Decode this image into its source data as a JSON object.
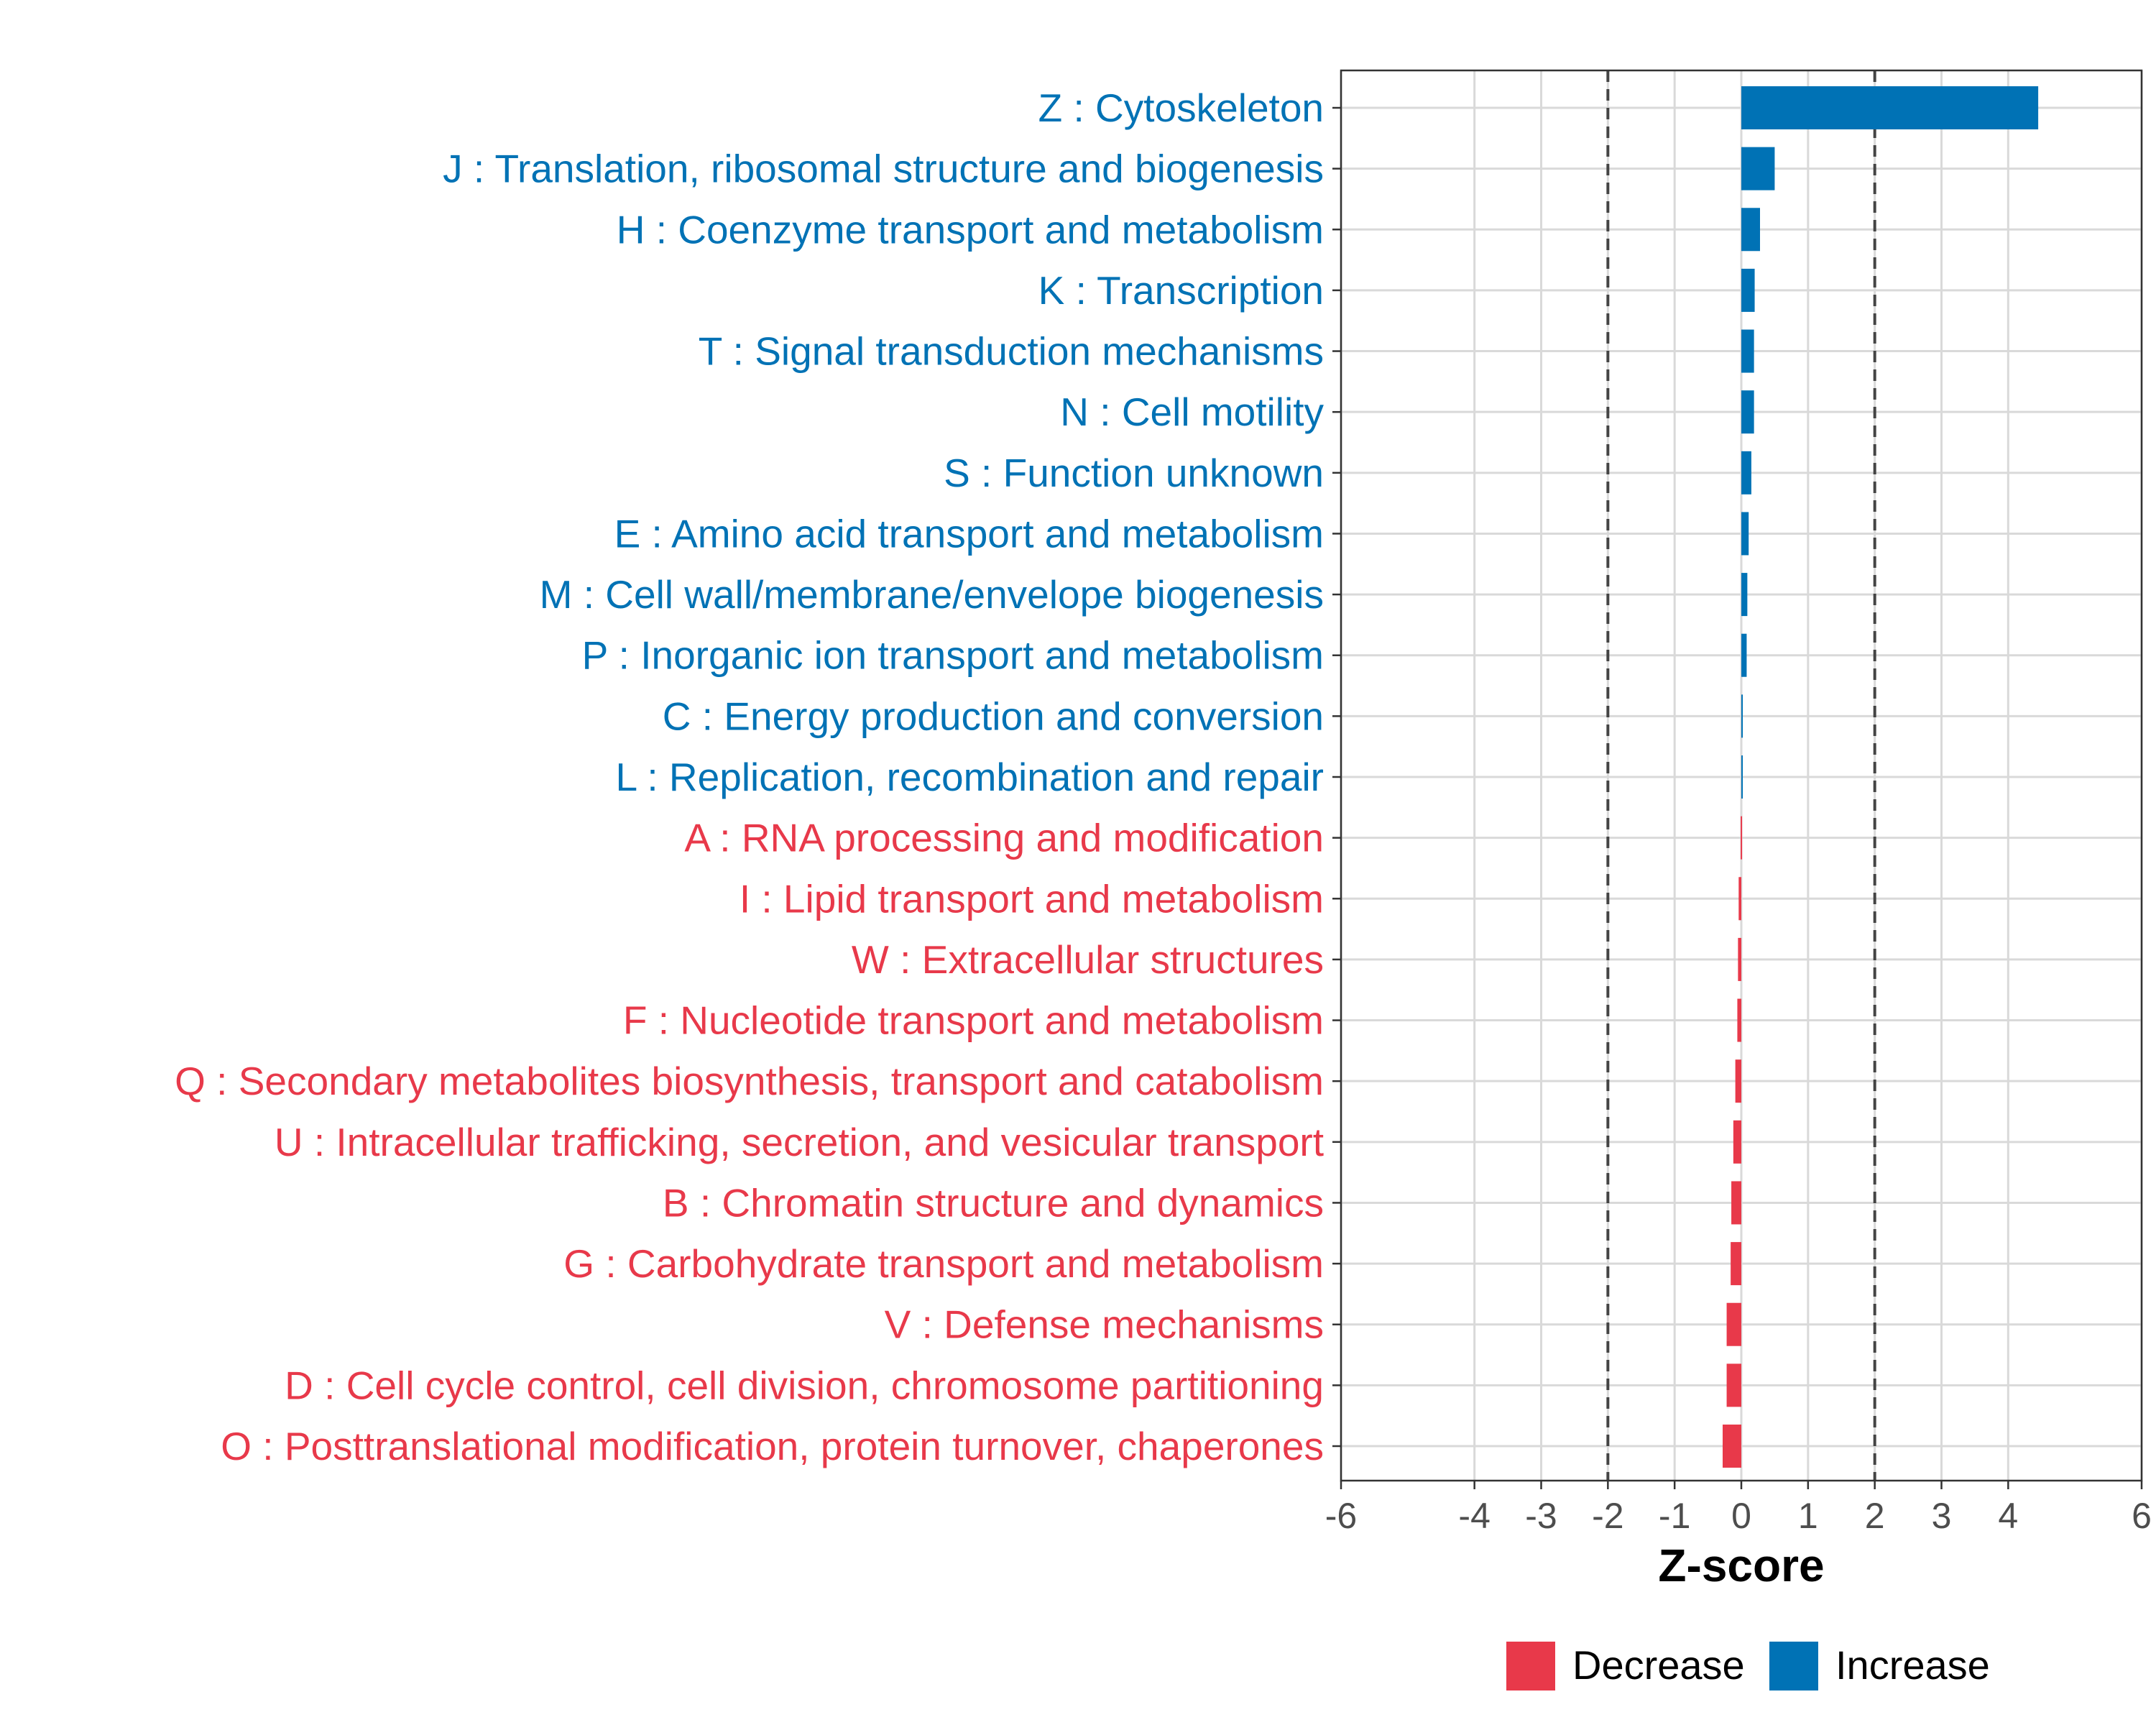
{
  "chart_data": {
    "type": "bar",
    "orientation": "horizontal",
    "title": "",
    "xlabel": "Z-score",
    "ylabel": "",
    "xlim": [
      -6,
      6
    ],
    "x_ticks": [
      -6,
      -4,
      -3,
      -2,
      -1,
      0,
      1,
      2,
      3,
      4,
      6
    ],
    "x_tick_labels": [
      "-6",
      "-4",
      "-3",
      "-2",
      "-1",
      "0",
      "1",
      "2",
      "3",
      "4",
      "6"
    ],
    "threshold_lines": [
      -2,
      2
    ],
    "grid": true,
    "legend_position": "bottom",
    "legend": [
      {
        "label": "Decrease",
        "color": "#E8394A"
      },
      {
        "label": "Increase",
        "color": "#0072B5"
      }
    ],
    "colors": {
      "Increase": "#0072B5",
      "Decrease": "#E8394A"
    },
    "categories": [
      "Z : Cytoskeleton",
      "J : Translation, ribosomal structure and biogenesis",
      "H : Coenzyme transport and metabolism",
      "K : Transcription",
      "T : Signal transduction mechanisms",
      "N : Cell motility",
      "S : Function unknown",
      "E : Amino acid transport and metabolism",
      "M : Cell wall/membrane/envelope biogenesis",
      "P : Inorganic ion transport and metabolism",
      "C : Energy production and conversion",
      "L : Replication, recombination and repair",
      "A : RNA processing and modification",
      "I : Lipid transport and metabolism",
      "W : Extracellular structures",
      "F : Nucleotide transport and metabolism",
      "Q : Secondary metabolites biosynthesis, transport and catabolism",
      "U : Intracellular trafficking, secretion, and vesicular transport",
      "B : Chromatin structure and dynamics",
      "G : Carbohydrate transport and metabolism",
      "V : Defense mechanisms",
      "D : Cell cycle control, cell division, chromosome partitioning",
      "O : Posttranslational modification, protein turnover, chaperones"
    ],
    "values": [
      4.45,
      0.5,
      0.28,
      0.2,
      0.19,
      0.19,
      0.15,
      0.11,
      0.09,
      0.08,
      0.02,
      0.01,
      -0.01,
      -0.04,
      -0.05,
      -0.06,
      -0.09,
      -0.12,
      -0.15,
      -0.16,
      -0.22,
      -0.22,
      -0.28
    ],
    "groups": [
      "Increase",
      "Increase",
      "Increase",
      "Increase",
      "Increase",
      "Increase",
      "Increase",
      "Increase",
      "Increase",
      "Increase",
      "Increase",
      "Increase",
      "Decrease",
      "Decrease",
      "Decrease",
      "Decrease",
      "Decrease",
      "Decrease",
      "Decrease",
      "Decrease",
      "Decrease",
      "Decrease",
      "Decrease"
    ]
  }
}
